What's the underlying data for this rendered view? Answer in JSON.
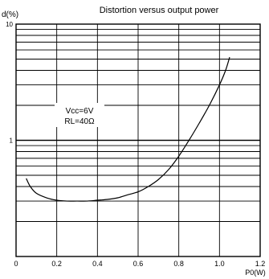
{
  "chart_data": {
    "type": "line",
    "title": "Distortion versus output power",
    "ylabel": "d(%)",
    "xlabel": "P0(W)",
    "x_ticks": [
      "0",
      "0.2",
      "0.4",
      "0.6",
      "0.8",
      "1.0",
      "1.2"
    ],
    "y_ticks": [
      "10",
      "1"
    ],
    "xlim": [
      0,
      1.2
    ],
    "ylim": [
      0.1,
      10
    ],
    "y_scale": "log",
    "grid": true,
    "annotation": [
      "Vcc=6V",
      "RL=40Ω"
    ],
    "series": [
      {
        "x": [
          0.05,
          0.07,
          0.1,
          0.15,
          0.2,
          0.25,
          0.3,
          0.35,
          0.4,
          0.45,
          0.5,
          0.55,
          0.6,
          0.65,
          0.7,
          0.75,
          0.8,
          0.85,
          0.9,
          0.95,
          1.0,
          1.03,
          1.05
        ],
        "y": [
          0.47,
          0.4,
          0.35,
          0.32,
          0.305,
          0.3,
          0.3,
          0.3,
          0.305,
          0.31,
          0.32,
          0.34,
          0.36,
          0.4,
          0.46,
          0.56,
          0.73,
          1.0,
          1.4,
          2.0,
          3.0,
          4.0,
          5.2
        ]
      }
    ]
  }
}
